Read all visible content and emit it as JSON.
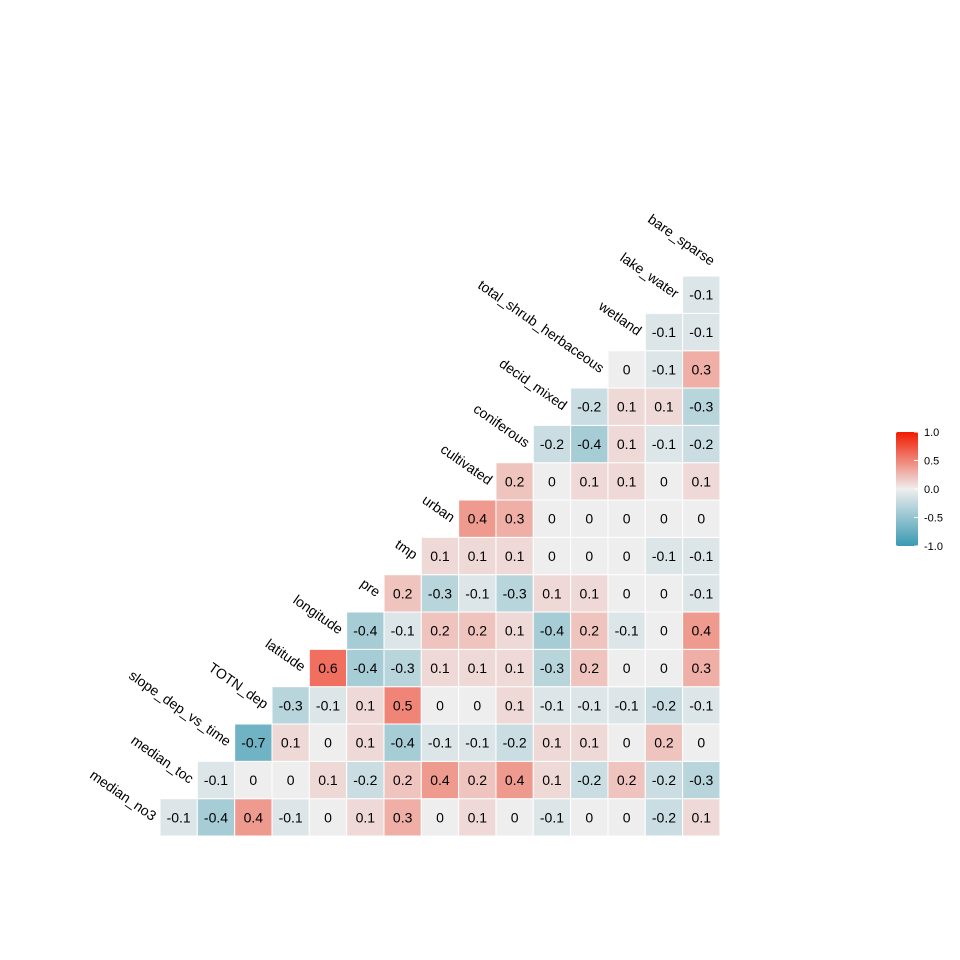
{
  "chart_data": {
    "type": "heatmap",
    "title": "",
    "layout": "lower-triangle correlation matrix",
    "variables": [
      "median_no3",
      "median_toc",
      "slope_dep_vs_time",
      "TOTN_dep",
      "latitude",
      "longitude",
      "pre",
      "tmp",
      "urban",
      "cultivated",
      "coniferous",
      "decid_mixed",
      "total_shrub_herbaceous",
      "wetland",
      "lake_water",
      "bare_sparse"
    ],
    "values": [
      [
        "-0.1",
        "-0.4",
        "0.4",
        "-0.1",
        "0",
        "0.1",
        "0.3",
        "0",
        "0.1",
        "0",
        "-0.1",
        "0",
        "0",
        "-0.2",
        "0.1"
      ],
      [
        "-0.1",
        "0",
        "0",
        "0.1",
        "-0.2",
        "0.2",
        "0.4",
        "0.2",
        "0.4",
        "0.1",
        "-0.2",
        "0.2",
        "-0.2",
        "-0.3"
      ],
      [
        "-0.7",
        "0.1",
        "0",
        "0.1",
        "-0.4",
        "-0.1",
        "-0.1",
        "-0.2",
        "0.1",
        "0.1",
        "0",
        "0.2",
        "0"
      ],
      [
        "-0.3",
        "-0.1",
        "0.1",
        "0.5",
        "0",
        "0",
        "0.1",
        "-0.1",
        "-0.1",
        "-0.1",
        "-0.2",
        "-0.1"
      ],
      [
        "0.6",
        "-0.4",
        "-0.3",
        "0.1",
        "0.1",
        "0.1",
        "-0.3",
        "0.2",
        "0",
        "0",
        "0.3"
      ],
      [
        "-0.4",
        "-0.1",
        "0.2",
        "0.2",
        "0.1",
        "-0.4",
        "0.2",
        "-0.1",
        "0",
        "0.4"
      ],
      [
        "0.2",
        "-0.3",
        "-0.1",
        "-0.3",
        "0.1",
        "0.1",
        "0",
        "0",
        "-0.1"
      ],
      [
        "0.1",
        "0.1",
        "0.1",
        "0",
        "0",
        "0",
        "-0.1",
        "-0.1"
      ],
      [
        "0.4",
        "0.3",
        "0",
        "0",
        "0",
        "0",
        "0"
      ],
      [
        "0.2",
        "0",
        "0.1",
        "0.1",
        "0",
        "0.1"
      ],
      [
        "-0.2",
        "-0.4",
        "0.1",
        "-0.1",
        "-0.2"
      ],
      [
        "-0.2",
        "0.1",
        "0.1",
        "-0.3"
      ],
      [
        "0",
        "-0.1",
        "0.3"
      ],
      [
        "-0.1",
        "-0.1"
      ],
      [
        "-0.1"
      ]
    ],
    "legend": {
      "position": "right",
      "range": [
        -1.0,
        1.0
      ],
      "ticks": [
        "1.0",
        "0.5",
        "0.0",
        "-0.5",
        "-1.0"
      ],
      "colors": {
        "low": "#3A9AB2",
        "mid": "#EEEEEE",
        "high": "#F11B00"
      }
    },
    "grid": false
  }
}
